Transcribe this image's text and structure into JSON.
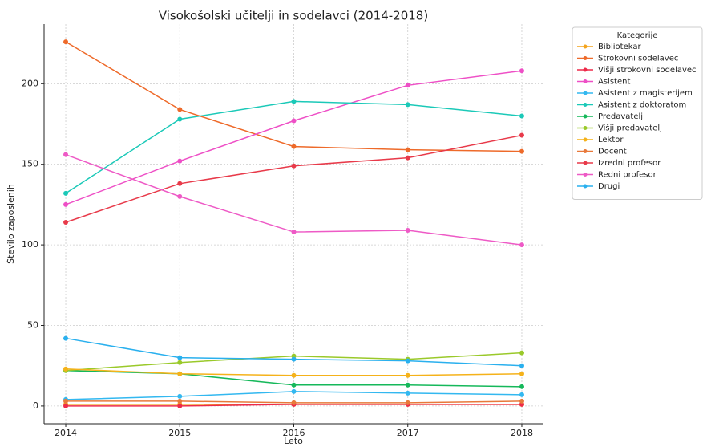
{
  "chart_data": {
    "type": "line",
    "title": "Visokošolski učitelji in sodelavci (2014-2018)",
    "x_label": "Leto",
    "y_label": "Število zaposlenih",
    "legend_title": "Kategorije",
    "legend": "outside-right",
    "grid": true,
    "x": [
      2014,
      2015,
      2016,
      2017,
      2018
    ],
    "xlim": [
      2013.81,
      2018.19
    ],
    "xticks": [
      2014,
      2015,
      2016,
      2017,
      2018
    ],
    "ylim": [
      -11,
      237
    ],
    "yticks": [
      0,
      50,
      100,
      150,
      200
    ],
    "series": [
      {
        "name": "Bibliotekar",
        "color": "#f4a41c",
        "values": [
          1,
          1,
          1,
          1,
          1
        ]
      },
      {
        "name": "Strokovni sodelavec",
        "color": "#ee6a2a",
        "values": [
          226,
          184,
          161,
          159,
          158
        ]
      },
      {
        "name": "Višji strokovni sodelavec",
        "color": "#ee2a4a",
        "values": [
          0,
          0,
          1,
          1,
          1
        ]
      },
      {
        "name": "Asistent",
        "color": "#ee4fc6",
        "values": [
          125,
          152,
          177,
          199,
          208
        ]
      },
      {
        "name": "Asistent z magisterijem",
        "color": "#33b8f0",
        "values": [
          4,
          6,
          9,
          8,
          7
        ]
      },
      {
        "name": "Asistent z doktoratom",
        "color": "#1bc9b8",
        "values": [
          132,
          178,
          189,
          187,
          180
        ]
      },
      {
        "name": "Predavatelj",
        "color": "#15b85a",
        "values": [
          22,
          20,
          13,
          13,
          12
        ]
      },
      {
        "name": "Višji predavatelj",
        "color": "#9ac92a",
        "values": [
          22,
          27,
          31,
          29,
          33
        ]
      },
      {
        "name": "Lektor",
        "color": "#f5b21a",
        "values": [
          23,
          20,
          19,
          19,
          20
        ]
      },
      {
        "name": "Docent",
        "color": "#e8793a",
        "values": [
          3,
          3,
          2,
          2,
          3
        ]
      },
      {
        "name": "Izredni profesor",
        "color": "#e83a4a",
        "values": [
          114,
          138,
          149,
          154,
          168
        ]
      },
      {
        "name": "Redni profesor",
        "color": "#ee5ac6",
        "values": [
          156,
          130,
          108,
          109,
          100
        ]
      },
      {
        "name": "Drugi",
        "color": "#2ab0ee",
        "values": [
          42,
          30,
          29,
          28,
          25
        ]
      }
    ]
  }
}
